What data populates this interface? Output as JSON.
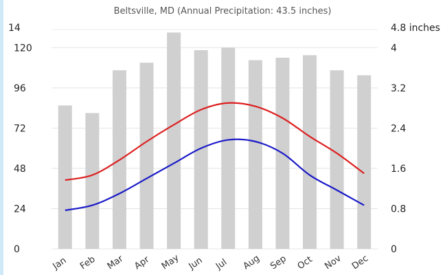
{
  "chart_data": {
    "type": "bar",
    "title": "",
    "subtitle": "Beltsville, MD (Annual Precipitation: 43.5 inches)",
    "categories": [
      "Jan",
      "Feb",
      "Mar",
      "Apr",
      "May",
      "Jun",
      "Jul",
      "Aug",
      "Sep",
      "Oct",
      "Nov",
      "Dec"
    ],
    "series": [
      {
        "name": "",
        "type": "bar",
        "axis": "right",
        "color": "#d0d0d0",
        "values": [
          2.85,
          2.7,
          3.55,
          3.7,
          4.3,
          3.95,
          4.0,
          3.75,
          3.8,
          3.85,
          3.55,
          3.45
        ]
      },
      {
        "name": "",
        "type": "line",
        "axis": "left",
        "color": "#dd1f1f",
        "values": [
          41,
          44,
          53,
          64,
          74,
          83,
          87,
          85,
          78,
          67,
          57,
          45
        ]
      },
      {
        "name": "",
        "type": "line",
        "axis": "left",
        "color": "#1a1ac8",
        "values": [
          23,
          26,
          33,
          42,
          51,
          60,
          65,
          64,
          57,
          44,
          35,
          26
        ]
      }
    ],
    "yaxis_left": {
      "min": 0,
      "max": 132,
      "ticks": [
        0,
        24,
        48,
        72,
        96,
        120
      ],
      "tick_labels": [
        "0",
        "24",
        "48",
        "72",
        "96",
        "120"
      ],
      "top_label": "14"
    },
    "yaxis_right": {
      "min": 0,
      "max": 4.4,
      "ticks": [
        0,
        0.8,
        1.6,
        2.4,
        3.2,
        4
      ],
      "tick_labels": [
        "0",
        "0.8",
        "1.6",
        "2.4",
        "3.2",
        "4"
      ],
      "top_label": "4.8 inches"
    },
    "grid": true,
    "legend": "none"
  }
}
